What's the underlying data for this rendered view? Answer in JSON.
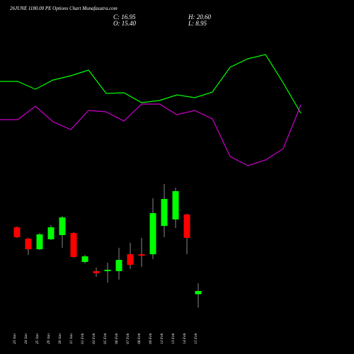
{
  "chart_data": [
    {
      "type": "line",
      "title": "26JUNE 1180.00 PE Options Chart Munafasutra.com",
      "x": [
        0,
        25,
        50,
        75,
        100,
        125,
        150,
        175,
        200,
        225,
        250,
        275,
        300,
        325,
        350,
        375,
        400,
        425
      ],
      "xlim": [
        0,
        500
      ],
      "ylim": [
        0,
        250
      ],
      "series": [
        {
          "color": "#00ff00",
          "values": [
            135,
            135,
            124,
            137,
            143,
            151,
            118,
            119,
            105,
            108,
            116,
            112,
            120,
            155,
            167,
            173,
            133,
            90
          ]
        },
        {
          "color": "#cc00cc",
          "values": [
            81,
            81,
            100,
            78,
            67,
            94,
            92,
            79,
            103,
            103,
            88,
            94,
            82,
            29,
            16,
            24,
            40,
            102
          ]
        }
      ]
    },
    {
      "type": "candlestick",
      "stats": [
        "C: 16.95",
        "O: 15.40",
        "H: 20.60",
        "L: 8.95"
      ],
      "categories": [
        "23 Jan",
        "24 Jan",
        "25 Jan",
        "29 Jan",
        "30 Jan",
        "31 Jan",
        "01 Feb",
        "02 Feb",
        "05 Feb",
        "06 Feb",
        "07 Feb",
        "08 Feb",
        "09 Feb",
        "12 Feb",
        "13 Feb",
        "14 Feb",
        "15 Feb"
      ],
      "open": [
        47.55,
        42.1,
        37.0,
        41.8,
        43.8,
        44.8,
        30.9,
        26.5,
        26.5,
        26.5,
        34.6,
        34.6,
        34.6,
        48.2,
        51.3,
        53.7,
        15.4
      ],
      "high": [
        47.9,
        42.45,
        44.8,
        48.6,
        53.0,
        45.2,
        34.3,
        28.2,
        30.55,
        37.7,
        40.1,
        42.45,
        61.5,
        68.3,
        66.6,
        54.0,
        20.6
      ],
      "low": [
        42.45,
        34.3,
        36.7,
        41.4,
        37.7,
        33.0,
        30.2,
        23.75,
        21.0,
        22.4,
        27.5,
        28.5,
        32.25,
        42.8,
        47.2,
        34.6,
        8.95
      ],
      "close": [
        42.8,
        37.0,
        44.15,
        47.55,
        52.3,
        33.3,
        33.6,
        25.45,
        27.15,
        31.9,
        29.5,
        33.95,
        54.35,
        61.15,
        64.9,
        42.45,
        16.95
      ],
      "up_color": "#00ff00",
      "down_color": "#ff0000",
      "ylim": [
        -13.3,
        71.7
      ]
    }
  ]
}
